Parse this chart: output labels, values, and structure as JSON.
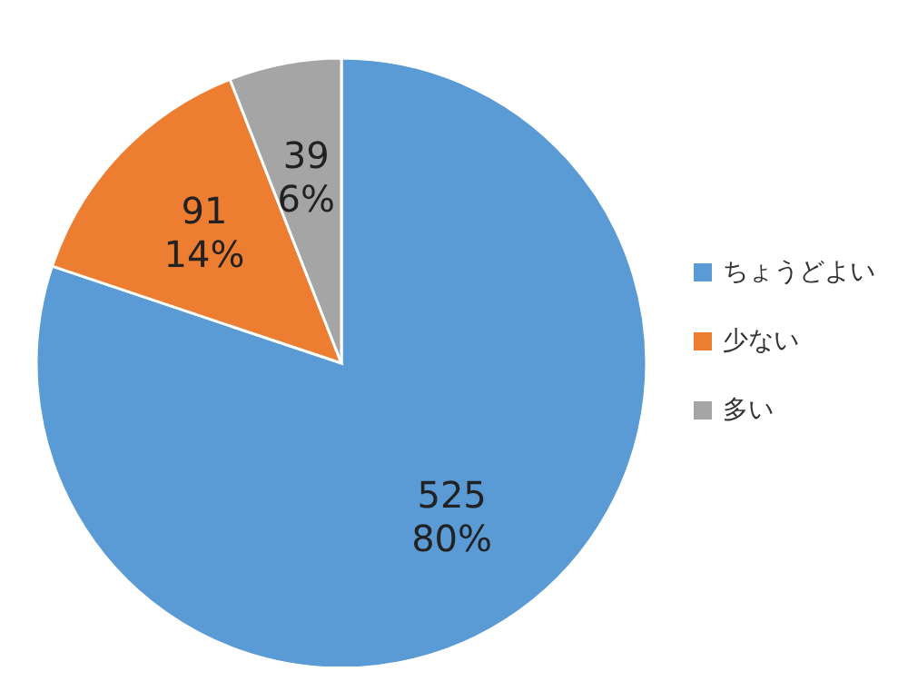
{
  "chart_data": {
    "type": "pie",
    "categories": [
      "ちょうどよい",
      "少ない",
      "多い"
    ],
    "values": [
      525,
      91,
      39
    ],
    "colors": [
      "#5b9bd5",
      "#ed7d31",
      "#a5a5a5"
    ],
    "value_labels": [
      "525\n80%",
      "91\n14%",
      "39\n6%"
    ],
    "legend": "right"
  }
}
